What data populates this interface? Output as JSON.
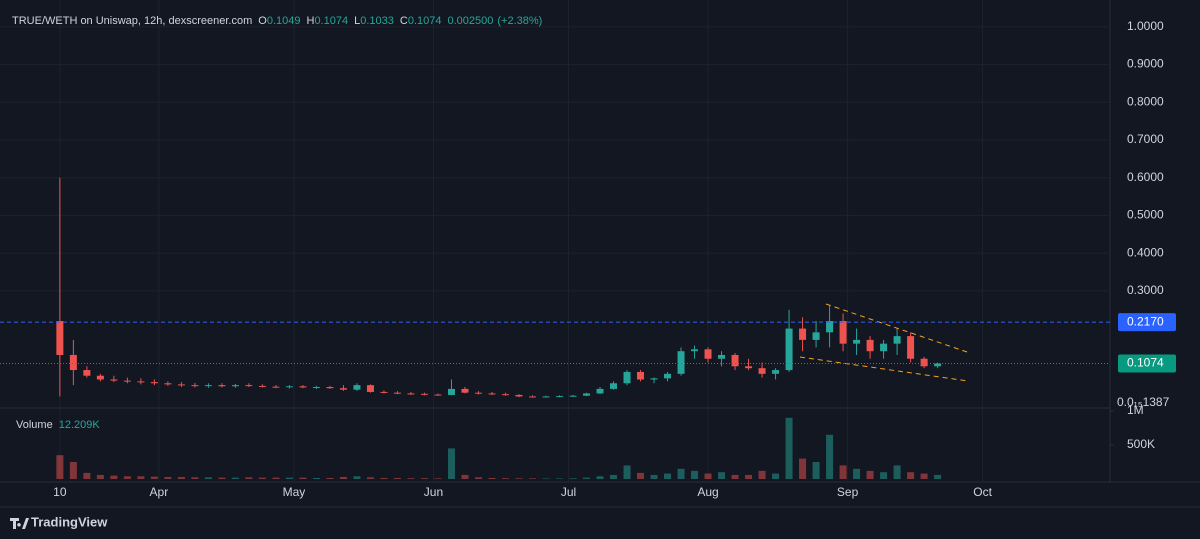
{
  "chart_data": {
    "type": "candlestick",
    "title": "TRUE/WETH on Uniswap, 12h, dexscreener.com",
    "ohlc_labels": [
      "O",
      "H",
      "L",
      "C"
    ],
    "ohlc_values": [
      0.1049,
      0.1074,
      0.1033,
      0.1074
    ],
    "change": "0.002500",
    "change_pct": "(+2.38%)",
    "up_color": "#26a69a",
    "down_color": "#ef5350",
    "x": [
      10,
      13,
      16,
      19,
      22,
      25,
      28,
      31,
      34,
      37,
      40,
      43,
      46,
      49,
      52,
      55,
      58,
      61,
      64,
      67,
      70,
      73,
      76,
      79,
      82,
      85,
      88,
      91,
      94,
      97,
      100,
      103,
      106,
      109,
      112,
      115,
      118,
      121,
      124,
      127,
      130,
      133,
      136,
      139,
      142,
      145,
      148,
      151,
      154,
      157,
      160,
      163,
      166,
      169,
      172,
      175,
      178,
      181,
      184,
      187,
      190,
      193,
      196,
      199,
      202,
      205
    ],
    "open": [
      0.22,
      0.13,
      0.09,
      0.075,
      0.065,
      0.062,
      0.06,
      0.058,
      0.055,
      0.052,
      0.05,
      0.048,
      0.05,
      0.047,
      0.05,
      0.048,
      0.046,
      0.045,
      0.047,
      0.044,
      0.045,
      0.042,
      0.038,
      0.05,
      0.032,
      0.03,
      0.028,
      0.027,
      0.025,
      0.024,
      0.04,
      0.03,
      0.028,
      0.026,
      0.024,
      0.02,
      0.019,
      0.02,
      0.021,
      0.022,
      0.028,
      0.04,
      0.055,
      0.085,
      0.065,
      0.068,
      0.08,
      0.14,
      0.145,
      0.12,
      0.13,
      0.1,
      0.095,
      0.08,
      0.09,
      0.2,
      0.17,
      0.19,
      0.22,
      0.16,
      0.17,
      0.14,
      0.16,
      0.18,
      0.12,
      0.1
    ],
    "high": [
      0.6,
      0.17,
      0.1,
      0.08,
      0.075,
      0.07,
      0.068,
      0.065,
      0.06,
      0.058,
      0.056,
      0.055,
      0.055,
      0.053,
      0.055,
      0.052,
      0.05,
      0.05,
      0.05,
      0.048,
      0.048,
      0.05,
      0.055,
      0.052,
      0.036,
      0.034,
      0.032,
      0.03,
      0.028,
      0.065,
      0.045,
      0.034,
      0.032,
      0.03,
      0.026,
      0.023,
      0.022,
      0.023,
      0.024,
      0.03,
      0.045,
      0.06,
      0.09,
      0.09,
      0.07,
      0.085,
      0.15,
      0.155,
      0.15,
      0.14,
      0.135,
      0.12,
      0.11,
      0.095,
      0.25,
      0.23,
      0.22,
      0.26,
      0.24,
      0.2,
      0.18,
      0.17,
      0.2,
      0.19,
      0.125,
      0.11
    ],
    "low": [
      0.02,
      0.05,
      0.07,
      0.06,
      0.058,
      0.055,
      0.052,
      0.05,
      0.048,
      0.045,
      0.044,
      0.043,
      0.044,
      0.043,
      0.045,
      0.044,
      0.042,
      0.041,
      0.042,
      0.04,
      0.04,
      0.035,
      0.035,
      0.03,
      0.028,
      0.026,
      0.024,
      0.023,
      0.022,
      0.023,
      0.028,
      0.025,
      0.024,
      0.022,
      0.018,
      0.017,
      0.017,
      0.018,
      0.019,
      0.021,
      0.026,
      0.038,
      0.05,
      0.06,
      0.055,
      0.06,
      0.075,
      0.12,
      0.11,
      0.1,
      0.09,
      0.09,
      0.07,
      0.065,
      0.085,
      0.14,
      0.15,
      0.15,
      0.14,
      0.13,
      0.12,
      0.12,
      0.13,
      0.11,
      0.095,
      0.095
    ],
    "close": [
      0.13,
      0.09,
      0.075,
      0.065,
      0.062,
      0.06,
      0.058,
      0.055,
      0.052,
      0.05,
      0.048,
      0.05,
      0.047,
      0.05,
      0.048,
      0.046,
      0.045,
      0.047,
      0.044,
      0.045,
      0.042,
      0.038,
      0.05,
      0.032,
      0.03,
      0.028,
      0.027,
      0.025,
      0.024,
      0.04,
      0.03,
      0.028,
      0.026,
      0.024,
      0.02,
      0.019,
      0.02,
      0.021,
      0.022,
      0.028,
      0.04,
      0.055,
      0.085,
      0.065,
      0.068,
      0.08,
      0.14,
      0.145,
      0.12,
      0.13,
      0.1,
      0.095,
      0.08,
      0.09,
      0.2,
      0.17,
      0.19,
      0.22,
      0.16,
      0.17,
      0.14,
      0.16,
      0.18,
      0.12,
      0.1,
      0.1074
    ],
    "volume": [
      350000,
      250000,
      90000,
      60000,
      50000,
      40000,
      40000,
      35000,
      30000,
      30000,
      25000,
      25000,
      20000,
      20000,
      25000,
      20000,
      20000,
      20000,
      20000,
      15000,
      15000,
      30000,
      40000,
      25000,
      15000,
      15000,
      12000,
      12000,
      10000,
      450000,
      60000,
      25000,
      15000,
      12000,
      10000,
      10000,
      8000,
      8000,
      10000,
      20000,
      40000,
      60000,
      200000,
      90000,
      60000,
      80000,
      150000,
      120000,
      80000,
      100000,
      60000,
      60000,
      120000,
      80000,
      900000,
      300000,
      250000,
      650000,
      200000,
      150000,
      120000,
      100000,
      200000,
      100000,
      80000,
      60000
    ],
    "xlim": [
      -3.3,
      243.3
    ],
    "xticks": [
      10,
      {
        "value": 32,
        "label": "Apr"
      },
      {
        "value": 62,
        "label": "May"
      },
      {
        "value": 93,
        "label": "Jun"
      },
      {
        "value": 123,
        "label": "Jul"
      },
      {
        "value": 154,
        "label": "Aug"
      },
      {
        "value": 185,
        "label": "Sep"
      },
      {
        "value": 215,
        "label": "Oct"
      }
    ],
    "ylim": [
      0,
      1.05
    ],
    "yticks": [
      {
        "value": 0.3,
        "label": "0.3000"
      },
      {
        "value": 0.4,
        "label": "0.4000"
      },
      {
        "value": 0.5,
        "label": "0.5000"
      },
      {
        "value": 0.6,
        "label": "0.6000"
      },
      {
        "value": 0.7,
        "label": "0.7000"
      },
      {
        "value": 0.8,
        "label": "0.8000"
      },
      {
        "value": 0.9,
        "label": "0.9000"
      },
      {
        "value": 1.0,
        "label": "1.0000"
      }
    ],
    "price_lines": [
      {
        "value": 0.217,
        "label": "0.2170",
        "color": "#2962ff"
      },
      {
        "value": 0.1074,
        "label": "0.1074",
        "color": "#089981"
      }
    ],
    "min_label": "0.0₁₅1387",
    "volume_label": "Volume",
    "volume_value": "12.209K",
    "volume_ylim": [
      0,
      1000000
    ],
    "volume_yticks": [
      {
        "value": 500000,
        "label": "500K"
      },
      {
        "value": 1000000,
        "label": "1M"
      }
    ],
    "grid": true
  },
  "branding": "TradingView"
}
